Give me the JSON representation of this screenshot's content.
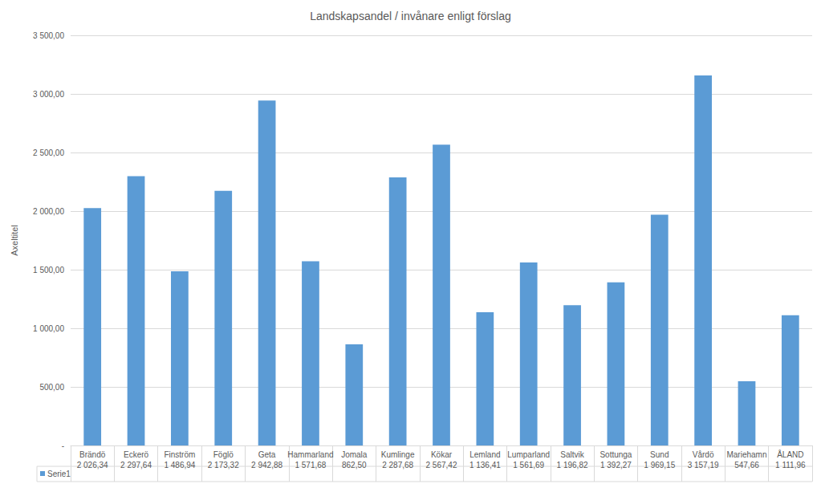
{
  "chart_data": {
    "type": "bar",
    "title": "Landskapsandel / invånare enligt förslag",
    "ylabel": "Axeltitel",
    "categories": [
      "Brändö",
      "Eckerö",
      "Finström",
      "Föglö",
      "Geta",
      "Hammarland",
      "Jomala",
      "Kumlinge",
      "Kökar",
      "Lemland",
      "Lumparland",
      "Saltvik",
      "Sottunga",
      "Sund",
      "Vårdö",
      "Mariehamn",
      "ÅLAND"
    ],
    "series": [
      {
        "name": "Serie1",
        "color": "#5b9bd5",
        "values": [
          2026.34,
          2297.64,
          1486.94,
          2173.32,
          2942.88,
          1571.68,
          862.5,
          2287.68,
          2567.42,
          1136.41,
          1561.69,
          1196.82,
          1392.27,
          1969.15,
          3157.19,
          547.66,
          1111.96
        ],
        "value_labels": [
          "2 026,34",
          "2 297,64",
          "1 486,94",
          "2 173,32",
          "2 942,88",
          "1 571,68",
          "862,50",
          "2 287,68",
          "2 567,42",
          "1 136,41",
          "1 561,69",
          "1 196,82",
          "1 392,27",
          "1 969,15",
          "3 157,19",
          "547,66",
          "1 111,96"
        ]
      }
    ],
    "ylim": [
      0,
      3500
    ],
    "yticks": [
      {
        "value": 0,
        "label": "-"
      },
      {
        "value": 500,
        "label": "500,00"
      },
      {
        "value": 1000,
        "label": "1 000,00"
      },
      {
        "value": 1500,
        "label": "1 500,00"
      },
      {
        "value": 2000,
        "label": "2 000,00"
      },
      {
        "value": 2500,
        "label": "2 500,00"
      },
      {
        "value": 3000,
        "label": "3 000,00"
      },
      {
        "value": 3500,
        "label": "3 500,00"
      }
    ],
    "grid": true
  }
}
